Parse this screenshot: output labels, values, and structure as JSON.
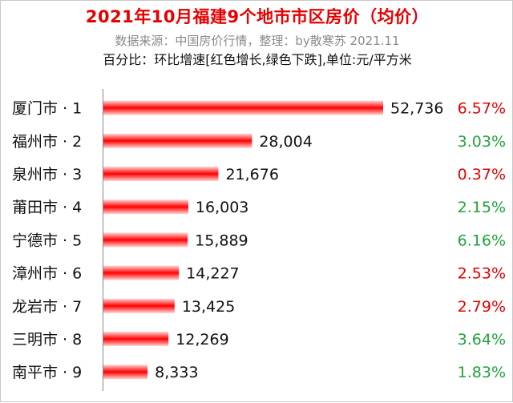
{
  "chart_data": {
    "type": "bar",
    "orientation": "horizontal",
    "title": "2021年10月福建9个地市市区房价（均价）",
    "subtitle": "数据来源：中国房价行情，整理：by散寒苏 2021.11",
    "note": "百分比：环比增速[红色增长,绿色下跌],单位:元/平方米",
    "categories": [
      "厦门市 · 1",
      "福州市 · 2",
      "泉州市 · 3",
      "莆田市 · 4",
      "宁德市 · 5",
      "漳州市 · 6",
      "龙岩市 · 7",
      "三明市 · 8",
      "南平市 · 9"
    ],
    "values": [
      52736,
      28004,
      21676,
      16003,
      15889,
      14227,
      13425,
      12269,
      8333
    ],
    "value_labels": [
      "52,736",
      "28,004",
      "21,676",
      "16,003",
      "15,889",
      "14,227",
      "13,425",
      "12,269",
      "8,333"
    ],
    "percent_labels": [
      "6.57%",
      "3.03%",
      "0.37%",
      "2.15%",
      "6.16%",
      "2.53%",
      "2.79%",
      "3.64%",
      "1.83%"
    ],
    "percent_trend": [
      "up",
      "down",
      "up",
      "down",
      "down",
      "up",
      "up",
      "down",
      "down"
    ],
    "xlim": [
      0,
      52736
    ],
    "grid": false,
    "legend": "none",
    "colors": {
      "bar_core": "#ff0000",
      "bar_edge": "#ffd0d0",
      "up": "#e60000",
      "down": "#22a33a",
      "title": "#e60000",
      "text": "#111111",
      "subtitle": "#8a8a8a",
      "axis": "#888888"
    }
  }
}
